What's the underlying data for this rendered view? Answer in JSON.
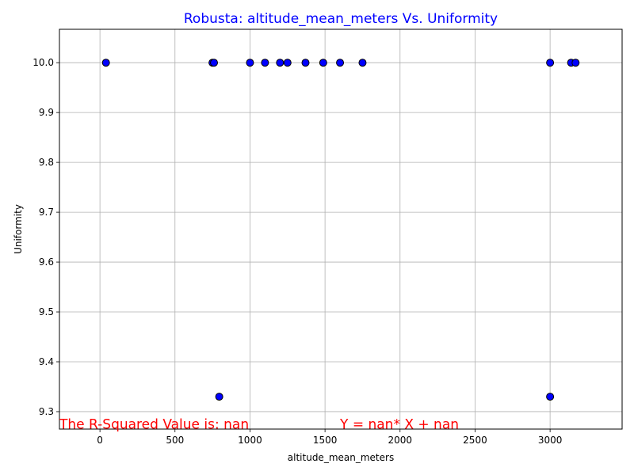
{
  "chart_data": {
    "type": "scatter",
    "title": "Robusta: altitude_mean_meters Vs. Uniformity",
    "xlabel": "altitude_mean_meters",
    "ylabel": "Uniformity",
    "xlim": [
      -270,
      3480
    ],
    "ylim": [
      9.265,
      10.067
    ],
    "xticks": [
      0,
      500,
      1000,
      1500,
      2000,
      2500,
      3000
    ],
    "yticks": [
      9.3,
      9.4,
      9.5,
      9.6,
      9.7,
      9.8,
      9.9,
      10.0
    ],
    "xtick_labels": [
      "0",
      "500",
      "1000",
      "1500",
      "2000",
      "2500",
      "3000"
    ],
    "ytick_labels": [
      "9.3",
      "9.4",
      "9.5",
      "9.6",
      "9.7",
      "9.8",
      "9.9",
      "10.0"
    ],
    "grid": true,
    "points": [
      {
        "x": 40,
        "y": 10.0
      },
      {
        "x": 750,
        "y": 10.0
      },
      {
        "x": 760,
        "y": 10.0
      },
      {
        "x": 795,
        "y": 9.33
      },
      {
        "x": 1000,
        "y": 10.0
      },
      {
        "x": 1100,
        "y": 10.0
      },
      {
        "x": 1200,
        "y": 10.0
      },
      {
        "x": 1250,
        "y": 10.0
      },
      {
        "x": 1370,
        "y": 10.0
      },
      {
        "x": 1488,
        "y": 10.0
      },
      {
        "x": 1600,
        "y": 10.0
      },
      {
        "x": 1750,
        "y": 10.0
      },
      {
        "x": 3000,
        "y": 10.0
      },
      {
        "x": 3000,
        "y": 9.33
      },
      {
        "x": 3140,
        "y": 10.0
      },
      {
        "x": 3170,
        "y": 10.0
      }
    ],
    "annotations": [
      {
        "text": "The R-Squared Value is: nan",
        "x": -270,
        "y": 9.275
      },
      {
        "text": "Y = nan* X + nan",
        "x": 1600,
        "y": 9.275
      }
    ],
    "colors": {
      "marker_fill": "#0000ff",
      "marker_edge": "#000000",
      "title": "#0000ff",
      "annotation": "#ff0000",
      "grid": "#b0b0b0"
    }
  }
}
